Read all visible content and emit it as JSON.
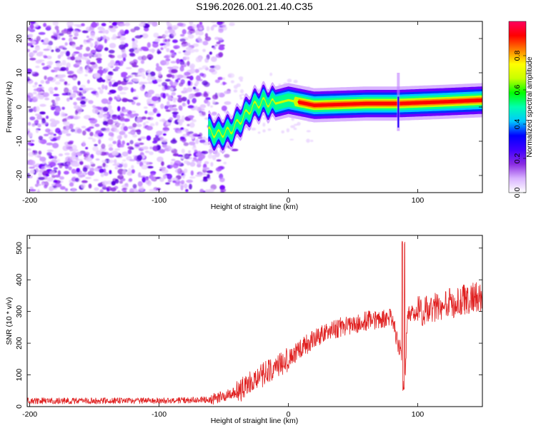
{
  "title": "S196.2026.001.21.40.C35",
  "chart_data": [
    {
      "type": "heatmap",
      "name": "spectrogram",
      "xlabel": "Height of straight line (km)",
      "ylabel": "Frequency (Hz)",
      "xlim": [
        -202,
        150
      ],
      "ylim": [
        -25,
        25
      ],
      "xticks": [
        -200,
        -100,
        0,
        100
      ],
      "yticks": [
        -20,
        -10,
        0,
        10,
        20
      ],
      "grid": false,
      "colorbar": {
        "label": "Normalized spectral amplitude",
        "range": [
          0,
          1
        ],
        "ticks": [
          0.0,
          0.2,
          0.4,
          0.6,
          0.8
        ],
        "tick_labels": [
          "0.0",
          "0.2",
          "0.4",
          "0.6",
          "0.8"
        ],
        "colors": [
          "#ffffff",
          "#d9b3ff",
          "#8a2be2",
          "#4000ff",
          "#0000ff",
          "#00c8ff",
          "#00ffb0",
          "#00ff00",
          "#c8ff00",
          "#ffff00",
          "#ff8000",
          "#ff0000",
          "#ff0060"
        ]
      },
      "ridge": {
        "description_points": [
          {
            "x": -62,
            "y": -7
          },
          {
            "x": -55,
            "y": -8
          },
          {
            "x": -45,
            "y": -7
          },
          {
            "x": -35,
            "y": -3
          },
          {
            "x": -28,
            "y": 0
          },
          {
            "x": -20,
            "y": 1.5
          },
          {
            "x": -10,
            "y": 1
          },
          {
            "x": 0,
            "y": 2
          },
          {
            "x": 20,
            "y": 0.5
          },
          {
            "x": 60,
            "y": 1
          },
          {
            "x": 85,
            "y": 1
          },
          {
            "x": 120,
            "y": 1.5
          },
          {
            "x": 150,
            "y": 2
          }
        ],
        "spike_x": 85
      }
    },
    {
      "type": "line",
      "name": "snr",
      "xlabel": "Height of straight line (km)",
      "ylabel": "SNR (10 * v/v)",
      "xlim": [
        -202,
        150
      ],
      "ylim": [
        0,
        540
      ],
      "xticks": [
        -200,
        -100,
        0,
        100
      ],
      "yticks": [
        0,
        100,
        200,
        300,
        400,
        500
      ],
      "grid": false,
      "series": [
        {
          "name": "SNR",
          "color": "#e02020",
          "trend_x": [
            -202,
            -150,
            -100,
            -60,
            -40,
            -20,
            0,
            20,
            40,
            60,
            80,
            88,
            90,
            92,
            100,
            120,
            140,
            150
          ],
          "trend_y": [
            18,
            18,
            19,
            22,
            45,
            100,
            150,
            215,
            250,
            270,
            280,
            150,
            60,
            290,
            300,
            320,
            340,
            350
          ],
          "spike_peak": 530
        }
      ]
    }
  ]
}
